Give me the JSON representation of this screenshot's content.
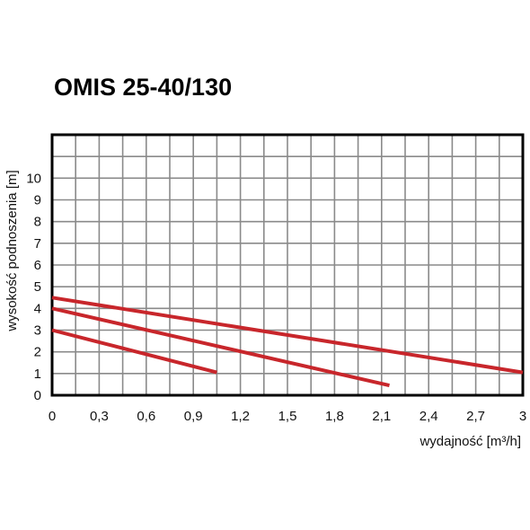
{
  "chart_data": {
    "type": "line",
    "title": "OMIS 25-40/130",
    "xlabel": "wydajność [m³/h]",
    "ylabel": "wysokość podnoszenia [m]",
    "xlim": [
      0,
      3
    ],
    "ylim": [
      0,
      12
    ],
    "x_ticks": [
      "0",
      "0,3",
      "0,6",
      "0,9",
      "1,2",
      "1,5",
      "1,8",
      "2,1",
      "2,4",
      "2,7",
      "3"
    ],
    "y_ticks": [
      "0",
      "1",
      "2",
      "3",
      "4",
      "5",
      "6",
      "7",
      "8",
      "9",
      "10"
    ],
    "grid": true,
    "line_color": "#c8262b",
    "series": [
      {
        "x": [
          0,
          3.0
        ],
        "y": [
          4.5,
          1.05
        ]
      },
      {
        "x": [
          0,
          2.15
        ],
        "y": [
          4.0,
          0.45
        ]
      },
      {
        "x": [
          0,
          1.05
        ],
        "y": [
          3.0,
          1.05
        ]
      }
    ]
  }
}
